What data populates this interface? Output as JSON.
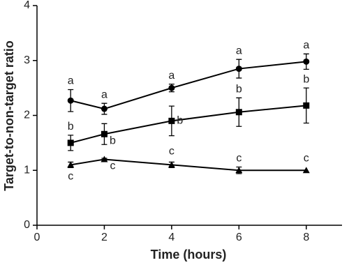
{
  "chart_data": {
    "type": "line",
    "x_label": "Time (hours)",
    "y_label": "Target-to-non-target ratio",
    "x": [
      1,
      2,
      4,
      6,
      8
    ],
    "xlim": [
      0,
      9
    ],
    "xticks": [
      0,
      2,
      4,
      6,
      8
    ],
    "ylim": [
      0,
      4
    ],
    "yticks": [
      0,
      1,
      2,
      3,
      4
    ],
    "series": [
      {
        "marker": "circle",
        "color": "#000000",
        "values": [
          2.27,
          2.12,
          2.5,
          2.85,
          2.98
        ],
        "errors": [
          0.2,
          0.1,
          0.07,
          0.17,
          0.14
        ],
        "labels": [
          "a",
          "a",
          "a",
          "a",
          "a"
        ]
      },
      {
        "marker": "square",
        "color": "#000000",
        "values": [
          1.5,
          1.66,
          1.9,
          2.06,
          2.18
        ],
        "errors": [
          0.14,
          0.19,
          0.27,
          0.26,
          0.32
        ],
        "labels": [
          "b",
          "b",
          "b",
          "b",
          "b"
        ]
      },
      {
        "marker": "triangle",
        "color": "#000000",
        "values": [
          1.1,
          1.2,
          1.1,
          1.0,
          1.0
        ],
        "errors": [
          0.05,
          0.02,
          0.05,
          0.06,
          0.0
        ],
        "labels": [
          "c",
          "c",
          "c",
          "c",
          "c"
        ]
      }
    ]
  }
}
